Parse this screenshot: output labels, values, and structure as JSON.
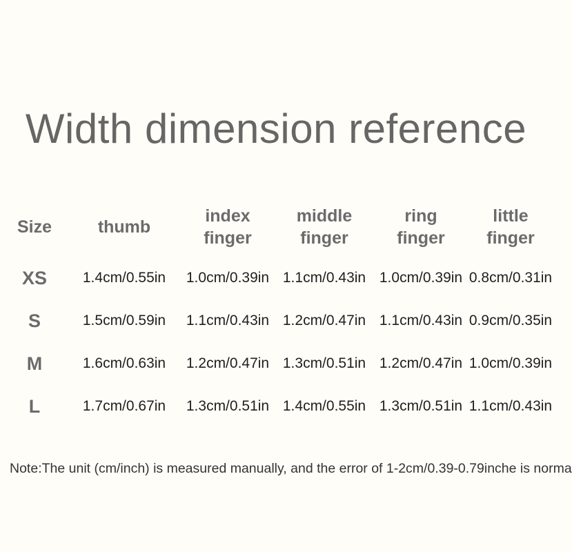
{
  "title": "Width dimension reference",
  "table": {
    "columns": [
      "Size",
      "thumb",
      "index finger",
      "middle finger",
      "ring finger",
      "little finger"
    ],
    "rows": [
      {
        "size": "XS",
        "values": [
          "1.4cm/0.55in",
          "1.0cm/0.39in",
          "1.1cm/0.43in",
          "1.0cm/0.39in",
          "0.8cm/0.31in"
        ]
      },
      {
        "size": "S",
        "values": [
          "1.5cm/0.59in",
          "1.1cm/0.43in",
          "1.2cm/0.47in",
          "1.1cm/0.43in",
          "0.9cm/0.35in"
        ]
      },
      {
        "size": "M",
        "values": [
          "1.6cm/0.63in",
          "1.2cm/0.47in",
          "1.3cm/0.51in",
          "1.2cm/0.47in",
          "1.0cm/0.39in"
        ]
      },
      {
        "size": "L",
        "values": [
          "1.7cm/0.67in",
          "1.3cm/0.51in",
          "1.4cm/0.55in",
          "1.3cm/0.51in",
          "1.1cm/0.43in"
        ]
      }
    ]
  },
  "note": "Note:The unit (cm/inch) is measured manually, and the error of 1-2cm/0.39-0.79inche is norma",
  "colors": {
    "background": "#fffdf8",
    "title_gray": "#666665",
    "header_gray": "#6b6b6b",
    "value_dark": "#1f1f1f"
  }
}
